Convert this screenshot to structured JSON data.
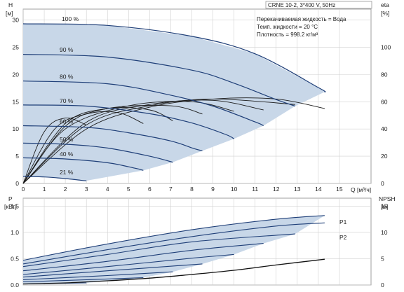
{
  "chart_data": {
    "type": "line",
    "info": {
      "model": "CRNE 10-2, 3*400 V, 50Hz",
      "liquid": "Перекачиваемая жидкость = Вода",
      "temp": "Темп. жидкости = 20 °C",
      "density": "Плотность = 998.2 кг/м³"
    },
    "top": {
      "y_label_line1": "H",
      "y_label_line2": "[м]",
      "y2_label_line1": "eta",
      "y2_label_line2": "[%]",
      "x_label": "Q [м³/ч]",
      "x_range": [
        0,
        16.5
      ],
      "y_range": [
        0,
        32
      ],
      "y2_range": [
        0,
        128
      ],
      "x_ticks": [
        0,
        1,
        2,
        3,
        4,
        5,
        6,
        7,
        8,
        9,
        10,
        11,
        12,
        13,
        14,
        15
      ],
      "y_ticks": [
        0,
        5,
        10,
        15,
        20,
        25,
        30
      ],
      "y2_ticks": [
        0,
        20,
        40,
        60,
        80,
        100
      ],
      "speed_labels": [
        {
          "text": "100 %",
          "x": 1.0,
          "y": 29.4
        },
        {
          "text": "90 %",
          "x": 0.9,
          "y": 23.8
        },
        {
          "text": "80 %",
          "x": 0.9,
          "y": 18.8
        },
        {
          "text": "70 %",
          "x": 0.9,
          "y": 14.4
        },
        {
          "text": "60 %",
          "x": 0.9,
          "y": 10.6
        },
        {
          "text": "50 %",
          "x": 0.9,
          "y": 7.3
        },
        {
          "text": "40 %",
          "x": 0.9,
          "y": 4.6
        },
        {
          "text": "21 %",
          "x": 0.9,
          "y": 1.3
        }
      ],
      "head_curves": [
        {
          "name": "100 %",
          "x": [
            0,
            4,
            8,
            11,
            14,
            14.3
          ],
          "y": [
            29.3,
            29.0,
            27.0,
            23.8,
            17.6,
            16.8
          ]
        },
        {
          "name": "90 %",
          "x": [
            0,
            4,
            8,
            10,
            12,
            12.9
          ],
          "y": [
            23.7,
            23.2,
            20.8,
            18.4,
            15.4,
            14.2
          ]
        },
        {
          "name": "80 %",
          "x": [
            0,
            4,
            7,
            9,
            11,
            11.4
          ],
          "y": [
            18.8,
            18.3,
            16.2,
            14.2,
            11.3,
            10.6
          ]
        },
        {
          "name": "70 %",
          "x": [
            0,
            3,
            6,
            8,
            9.6,
            10.0
          ],
          "y": [
            14.4,
            14.2,
            12.8,
            11.1,
            9.0,
            8.2
          ]
        },
        {
          "name": "60 %",
          "x": [
            0,
            3,
            5,
            7,
            8.1,
            8.5
          ],
          "y": [
            10.6,
            10.3,
            9.3,
            7.8,
            6.4,
            6.0
          ]
        },
        {
          "name": "50 %",
          "x": [
            0,
            2,
            4,
            6,
            7.1
          ],
          "y": [
            7.4,
            7.2,
            6.5,
            5.0,
            3.9
          ]
        },
        {
          "name": "40 %",
          "x": [
            0,
            2,
            4,
            5.3,
            5.7
          ],
          "y": [
            4.7,
            4.5,
            3.8,
            2.8,
            2.4
          ]
        },
        {
          "name": "21 %",
          "x": [
            0,
            1,
            2,
            2.7,
            3.0
          ],
          "y": [
            1.3,
            1.2,
            0.9,
            0.6,
            0.5
          ]
        }
      ],
      "efficiency_curves": [
        {
          "name": "eta 100 %",
          "x": [
            0,
            3,
            6,
            9,
            12,
            14.3
          ],
          "y": [
            0,
            40,
            56,
            62,
            62,
            55
          ]
        },
        {
          "name": "eta 90 %",
          "x": [
            0,
            3,
            6,
            9,
            12.9
          ],
          "y": [
            0,
            43,
            57,
            62,
            58
          ]
        },
        {
          "name": "eta 80 %",
          "x": [
            0,
            3,
            6,
            9,
            11.4
          ],
          "y": [
            0,
            45,
            58,
            61,
            54
          ]
        },
        {
          "name": "eta 70 %",
          "x": [
            0,
            2,
            5,
            8,
            10.0
          ],
          "y": [
            0,
            40,
            57,
            60,
            53
          ]
        },
        {
          "name": "eta 60 %",
          "x": [
            0,
            2,
            4,
            7,
            8.5
          ],
          "y": [
            0,
            42,
            55,
            57,
            51
          ]
        },
        {
          "name": "eta 50 %",
          "x": [
            0,
            2,
            4,
            6,
            7.1
          ],
          "y": [
            0,
            44,
            55,
            54,
            46
          ]
        },
        {
          "name": "eta 40 %",
          "x": [
            0,
            1.5,
            3,
            4.5,
            5.7
          ],
          "y": [
            0,
            40,
            51,
            52,
            44
          ]
        },
        {
          "name": "eta 21 %",
          "x": [
            0,
            1,
            2,
            3.0
          ],
          "y": [
            0,
            38,
            48,
            43
          ]
        }
      ]
    },
    "bottom": {
      "y_label_line1": "P",
      "y_label_line2": "[кВт]",
      "y2_label_line1": "NPSH",
      "y2_label_line2": "[м]",
      "x_range": [
        0,
        16.5
      ],
      "y_range": [
        0,
        1.65
      ],
      "y2_range": [
        0,
        16.5
      ],
      "y_ticks": [
        0,
        0.5,
        1.0,
        1.5
      ],
      "y_tick_labels": [
        "0.0",
        "0.5",
        "1.0",
        "1.5"
      ],
      "y2_ticks": [
        0,
        5,
        10,
        15
      ],
      "series_labels": [
        "P1",
        "P2"
      ],
      "power_curves": [
        {
          "name": "P1 100 %",
          "x": [
            0,
            4,
            8,
            12,
            14.3
          ],
          "y": [
            0.47,
            0.78,
            1.05,
            1.25,
            1.32
          ]
        },
        {
          "name": "P2 100 %",
          "x": [
            0,
            4,
            8,
            12,
            14.3
          ],
          "y": [
            0.4,
            0.67,
            0.92,
            1.12,
            1.18
          ]
        },
        {
          "name": "P 90 %",
          "x": [
            0,
            4,
            8,
            12.9
          ],
          "y": [
            0.35,
            0.58,
            0.82,
            0.97
          ]
        },
        {
          "name": "P 80 %",
          "x": [
            0,
            4,
            8,
            11.4
          ],
          "y": [
            0.27,
            0.45,
            0.66,
            0.79
          ]
        },
        {
          "name": "P 70 %",
          "x": [
            0,
            4,
            8,
            10.0
          ],
          "y": [
            0.2,
            0.35,
            0.51,
            0.58
          ]
        },
        {
          "name": "P 60 %",
          "x": [
            0,
            4,
            8.5
          ],
          "y": [
            0.15,
            0.27,
            0.4
          ]
        },
        {
          "name": "P 50 %",
          "x": [
            0,
            4,
            7.1
          ],
          "y": [
            0.1,
            0.18,
            0.25
          ]
        },
        {
          "name": "P 40 %",
          "x": [
            0,
            3,
            5.7
          ],
          "y": [
            0.06,
            0.1,
            0.14
          ]
        },
        {
          "name": "P 21 %",
          "x": [
            0,
            1.5,
            3.0
          ],
          "y": [
            0.02,
            0.03,
            0.04
          ]
        }
      ],
      "npsh_curve": {
        "name": "NPSH",
        "x": [
          0,
          2,
          4,
          6,
          8,
          10,
          12,
          14.3
        ],
        "y": [
          0.2,
          0.4,
          0.8,
          1.3,
          2.0,
          2.8,
          3.8,
          4.9
        ]
      }
    }
  }
}
